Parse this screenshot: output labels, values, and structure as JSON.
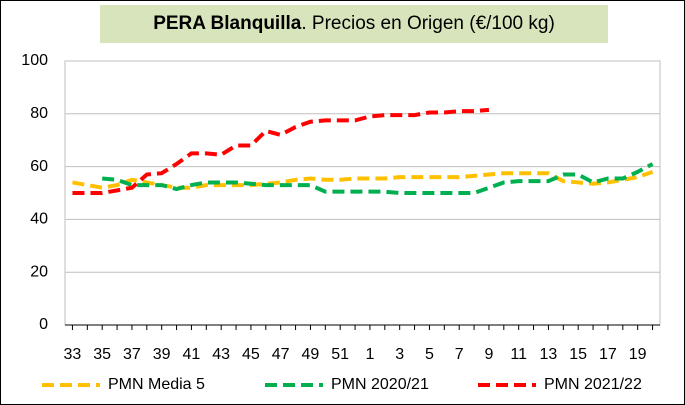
{
  "chart_data": {
    "type": "line",
    "title": [
      "PERA Blanquilla",
      ". Precios en Origen (€/100 kg)"
    ],
    "categories": [
      "33",
      null,
      "35",
      null,
      "37",
      null,
      "39",
      null,
      "41",
      null,
      "43",
      null,
      "45",
      null,
      "47",
      null,
      "49",
      null,
      "51",
      null,
      "1",
      null,
      "3",
      null,
      "5",
      null,
      "7",
      null,
      "9",
      null,
      "11",
      null,
      "13",
      null,
      "15",
      null,
      "17",
      null,
      "19",
      null
    ],
    "series": [
      {
        "name": "PMN Media 5",
        "color": "#ffc000",
        "values": [
          54,
          53,
          52,
          53,
          55,
          54,
          53,
          52,
          52,
          53,
          53,
          53,
          53,
          53.5,
          54,
          55,
          55.5,
          55,
          55,
          55.5,
          55.5,
          55.5,
          56,
          56,
          56,
          56,
          56,
          56.5,
          57,
          57.5,
          57.5,
          57.5,
          57.5,
          54.5,
          54,
          53.5,
          54,
          55,
          56,
          58
        ]
      },
      {
        "name": "PMN 2020/21",
        "color": "#00b050",
        "values": [
          null,
          null,
          55.5,
          55,
          53,
          53,
          53,
          51.5,
          53,
          54,
          54,
          54,
          53.5,
          53,
          53,
          53,
          53,
          50.5,
          50.5,
          50.5,
          50.5,
          50.5,
          50,
          50,
          50,
          50,
          50,
          50,
          52,
          54,
          54.5,
          54.5,
          54.5,
          57,
          57,
          54,
          55.5,
          55.5,
          58,
          61
        ]
      },
      {
        "name": "PMN 2021/22",
        "color": "#ff0000",
        "values": [
          50,
          50,
          50,
          51,
          52,
          57,
          57.5,
          61,
          65,
          65,
          64.5,
          68,
          68,
          73.5,
          72,
          75,
          77,
          77.5,
          77.5,
          77.5,
          79,
          79.5,
          79.5,
          79.5,
          80.5,
          80.5,
          81,
          81,
          81.5,
          null,
          null,
          null,
          null,
          null,
          null,
          null,
          null,
          null,
          null,
          null
        ]
      }
    ],
    "ylim": [
      0,
      100
    ],
    "yticks": [
      0,
      20,
      40,
      60,
      80,
      100
    ],
    "grid": true,
    "legend": "bottom"
  }
}
